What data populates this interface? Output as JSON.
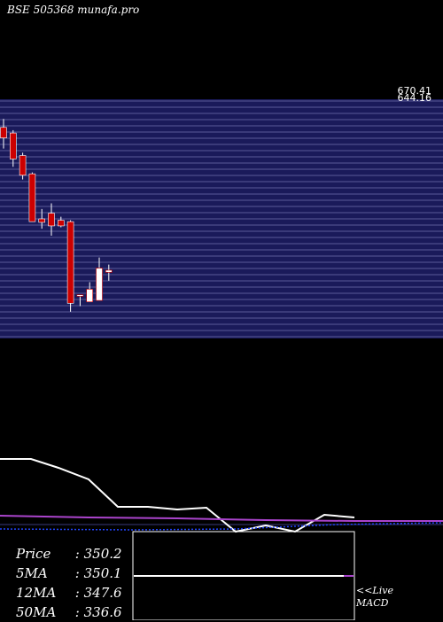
{
  "header": {
    "title": "BSE 505368  munafa.pro"
  },
  "price_labels": [
    "670.41",
    "644.16"
  ],
  "info": {
    "rows": [
      {
        "key": "Price",
        "sep": ":",
        "value": "350.2"
      },
      {
        "key": "5MA",
        "sep": ":",
        "value": "350.1"
      },
      {
        "key": "12MA",
        "sep": ":",
        "value": "347.6"
      },
      {
        "key": "50MA",
        "sep": ":",
        "value": "336.6"
      }
    ]
  },
  "live_label": "<<Live",
  "macd_label": "MACD",
  "colors": {
    "background": "#000000",
    "panel": "#1a1a5a",
    "grid": "#c8c8ff",
    "bearish": "#cc0000",
    "bullish": "#ffffff",
    "ma_line": "#aa44cc",
    "signal": "#2244ff",
    "macd_box_line": "#ffffff"
  },
  "chart_data": [
    {
      "type": "candlestick",
      "title": "BSE 505368",
      "y_range": [
        340,
        680
      ],
      "candles": [
        {
          "open": 640,
          "close": 625,
          "high": 652,
          "low": 610
        },
        {
          "open": 632,
          "close": 595,
          "high": 636,
          "low": 584
        },
        {
          "open": 600,
          "close": 572,
          "high": 604,
          "low": 566
        },
        {
          "open": 574,
          "close": 506,
          "high": 576,
          "low": 506
        },
        {
          "open": 510,
          "close": 505,
          "high": 524,
          "low": 496
        },
        {
          "open": 518,
          "close": 500,
          "high": 532,
          "low": 486
        },
        {
          "open": 508,
          "close": 500,
          "high": 513,
          "low": 498
        },
        {
          "open": 506,
          "close": 390,
          "high": 508,
          "low": 378
        },
        {
          "open": 400,
          "close": 402,
          "high": 402,
          "low": 386
        },
        {
          "open": 392,
          "close": 410,
          "high": 420,
          "low": 392
        },
        {
          "open": 394,
          "close": 440,
          "high": 455,
          "low": 394
        },
        {
          "open": 434,
          "close": 437,
          "high": 445,
          "low": 422
        }
      ]
    },
    {
      "type": "line",
      "series": [
        {
          "values": [
            78,
            78,
            72,
            64,
            50,
            47,
            46,
            41,
            38,
            46,
            53,
            52
          ]
        },
        {
          "values": [
            23,
            23,
            22,
            22,
            21,
            20,
            20,
            19,
            18,
            18,
            17,
            17,
            16,
            15,
            15,
            14
          ]
        },
        {
          "values": [
            10,
            11,
            12,
            13,
            13,
            14
          ]
        }
      ]
    },
    {
      "type": "line",
      "series": [
        {
          "values": [
            0,
            0,
            0,
            0,
            0,
            0,
            0,
            0,
            0,
            0
          ]
        }
      ]
    }
  ]
}
